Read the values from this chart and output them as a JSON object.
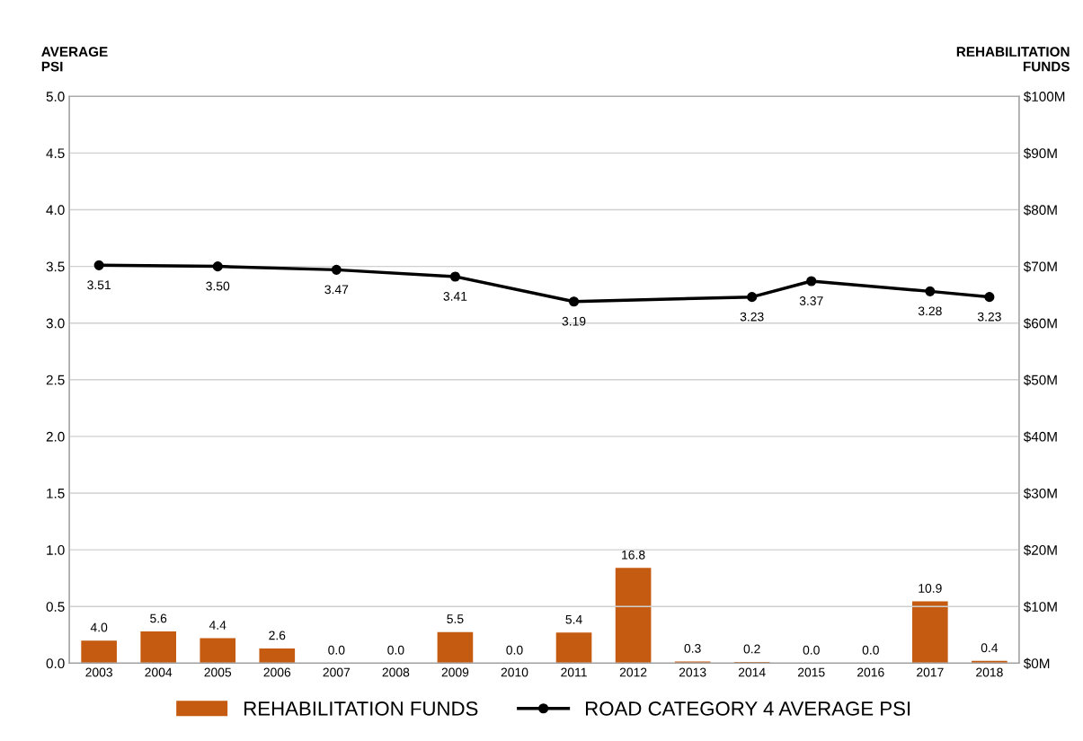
{
  "chart_data": {
    "type": "bar",
    "ylabel": "AVERAGE\nPSI",
    "y2label": "REHABILITATION\nFUNDS",
    "categories": [
      "2003",
      "2004",
      "2005",
      "2006",
      "2007",
      "2008",
      "2009",
      "2010",
      "2011",
      "2012",
      "2013",
      "2014",
      "2015",
      "2016",
      "2017",
      "2018"
    ],
    "series": [
      {
        "name": "REHABILITATION FUNDS",
        "axis": "y2",
        "color": "#c55a11",
        "values": [
          4.0,
          5.6,
          4.4,
          2.6,
          0.0,
          0.0,
          5.5,
          0.0,
          5.4,
          16.8,
          0.3,
          0.2,
          0.0,
          0.0,
          10.9,
          0.4
        ],
        "value_labels": [
          "4.0",
          "5.6",
          "4.4",
          "2.6",
          "0.0",
          "0.0",
          "5.5",
          "0.0",
          "5.4",
          "16.8",
          "0.3",
          "0.2",
          "0.0",
          "0.0",
          "10.9",
          "0.4"
        ]
      },
      {
        "name": "ROAD CATEGORY 4 AVERAGE PSI",
        "type": "line",
        "axis": "y",
        "color": "#000000",
        "marker": "circle",
        "values": [
          3.51,
          null,
          3.5,
          null,
          3.47,
          null,
          3.41,
          null,
          3.19,
          null,
          null,
          3.23,
          3.37,
          null,
          3.28,
          3.23
        ],
        "value_labels": [
          "3.51",
          null,
          "3.50",
          null,
          "3.47",
          null,
          "3.41",
          null,
          "3.19",
          null,
          null,
          "3.23",
          "3.37",
          null,
          "3.28",
          "3.23"
        ]
      }
    ],
    "ylim": [
      0,
      5
    ],
    "yticks": [
      {
        "value": 0,
        "label": "0.0"
      },
      {
        "value": 0.5,
        "label": "0.5"
      },
      {
        "value": 1,
        "label": "1.0"
      },
      {
        "value": 1.5,
        "label": "1.5"
      },
      {
        "value": 2,
        "label": "2.0"
      },
      {
        "value": 2.5,
        "label": "2.5"
      },
      {
        "value": 3,
        "label": "3.0"
      },
      {
        "value": 3.5,
        "label": "3.5"
      },
      {
        "value": 4,
        "label": "4.0"
      },
      {
        "value": 4.5,
        "label": "4.5"
      },
      {
        "value": 5,
        "label": "5.0"
      }
    ],
    "y2lim": [
      0,
      100
    ],
    "y2ticks": [
      {
        "value": 0,
        "label": "$0M"
      },
      {
        "value": 10,
        "label": "$10M"
      },
      {
        "value": 20,
        "label": "$20M"
      },
      {
        "value": 30,
        "label": "$30M"
      },
      {
        "value": 40,
        "label": "$40M"
      },
      {
        "value": 50,
        "label": "$50M"
      },
      {
        "value": 60,
        "label": "$60M"
      },
      {
        "value": 70,
        "label": "$70M"
      },
      {
        "value": 80,
        "label": "$80M"
      },
      {
        "value": 90,
        "label": "$90M"
      },
      {
        "value": 100,
        "label": "$100M"
      }
    ],
    "grid": "y",
    "legend": "bottom"
  }
}
